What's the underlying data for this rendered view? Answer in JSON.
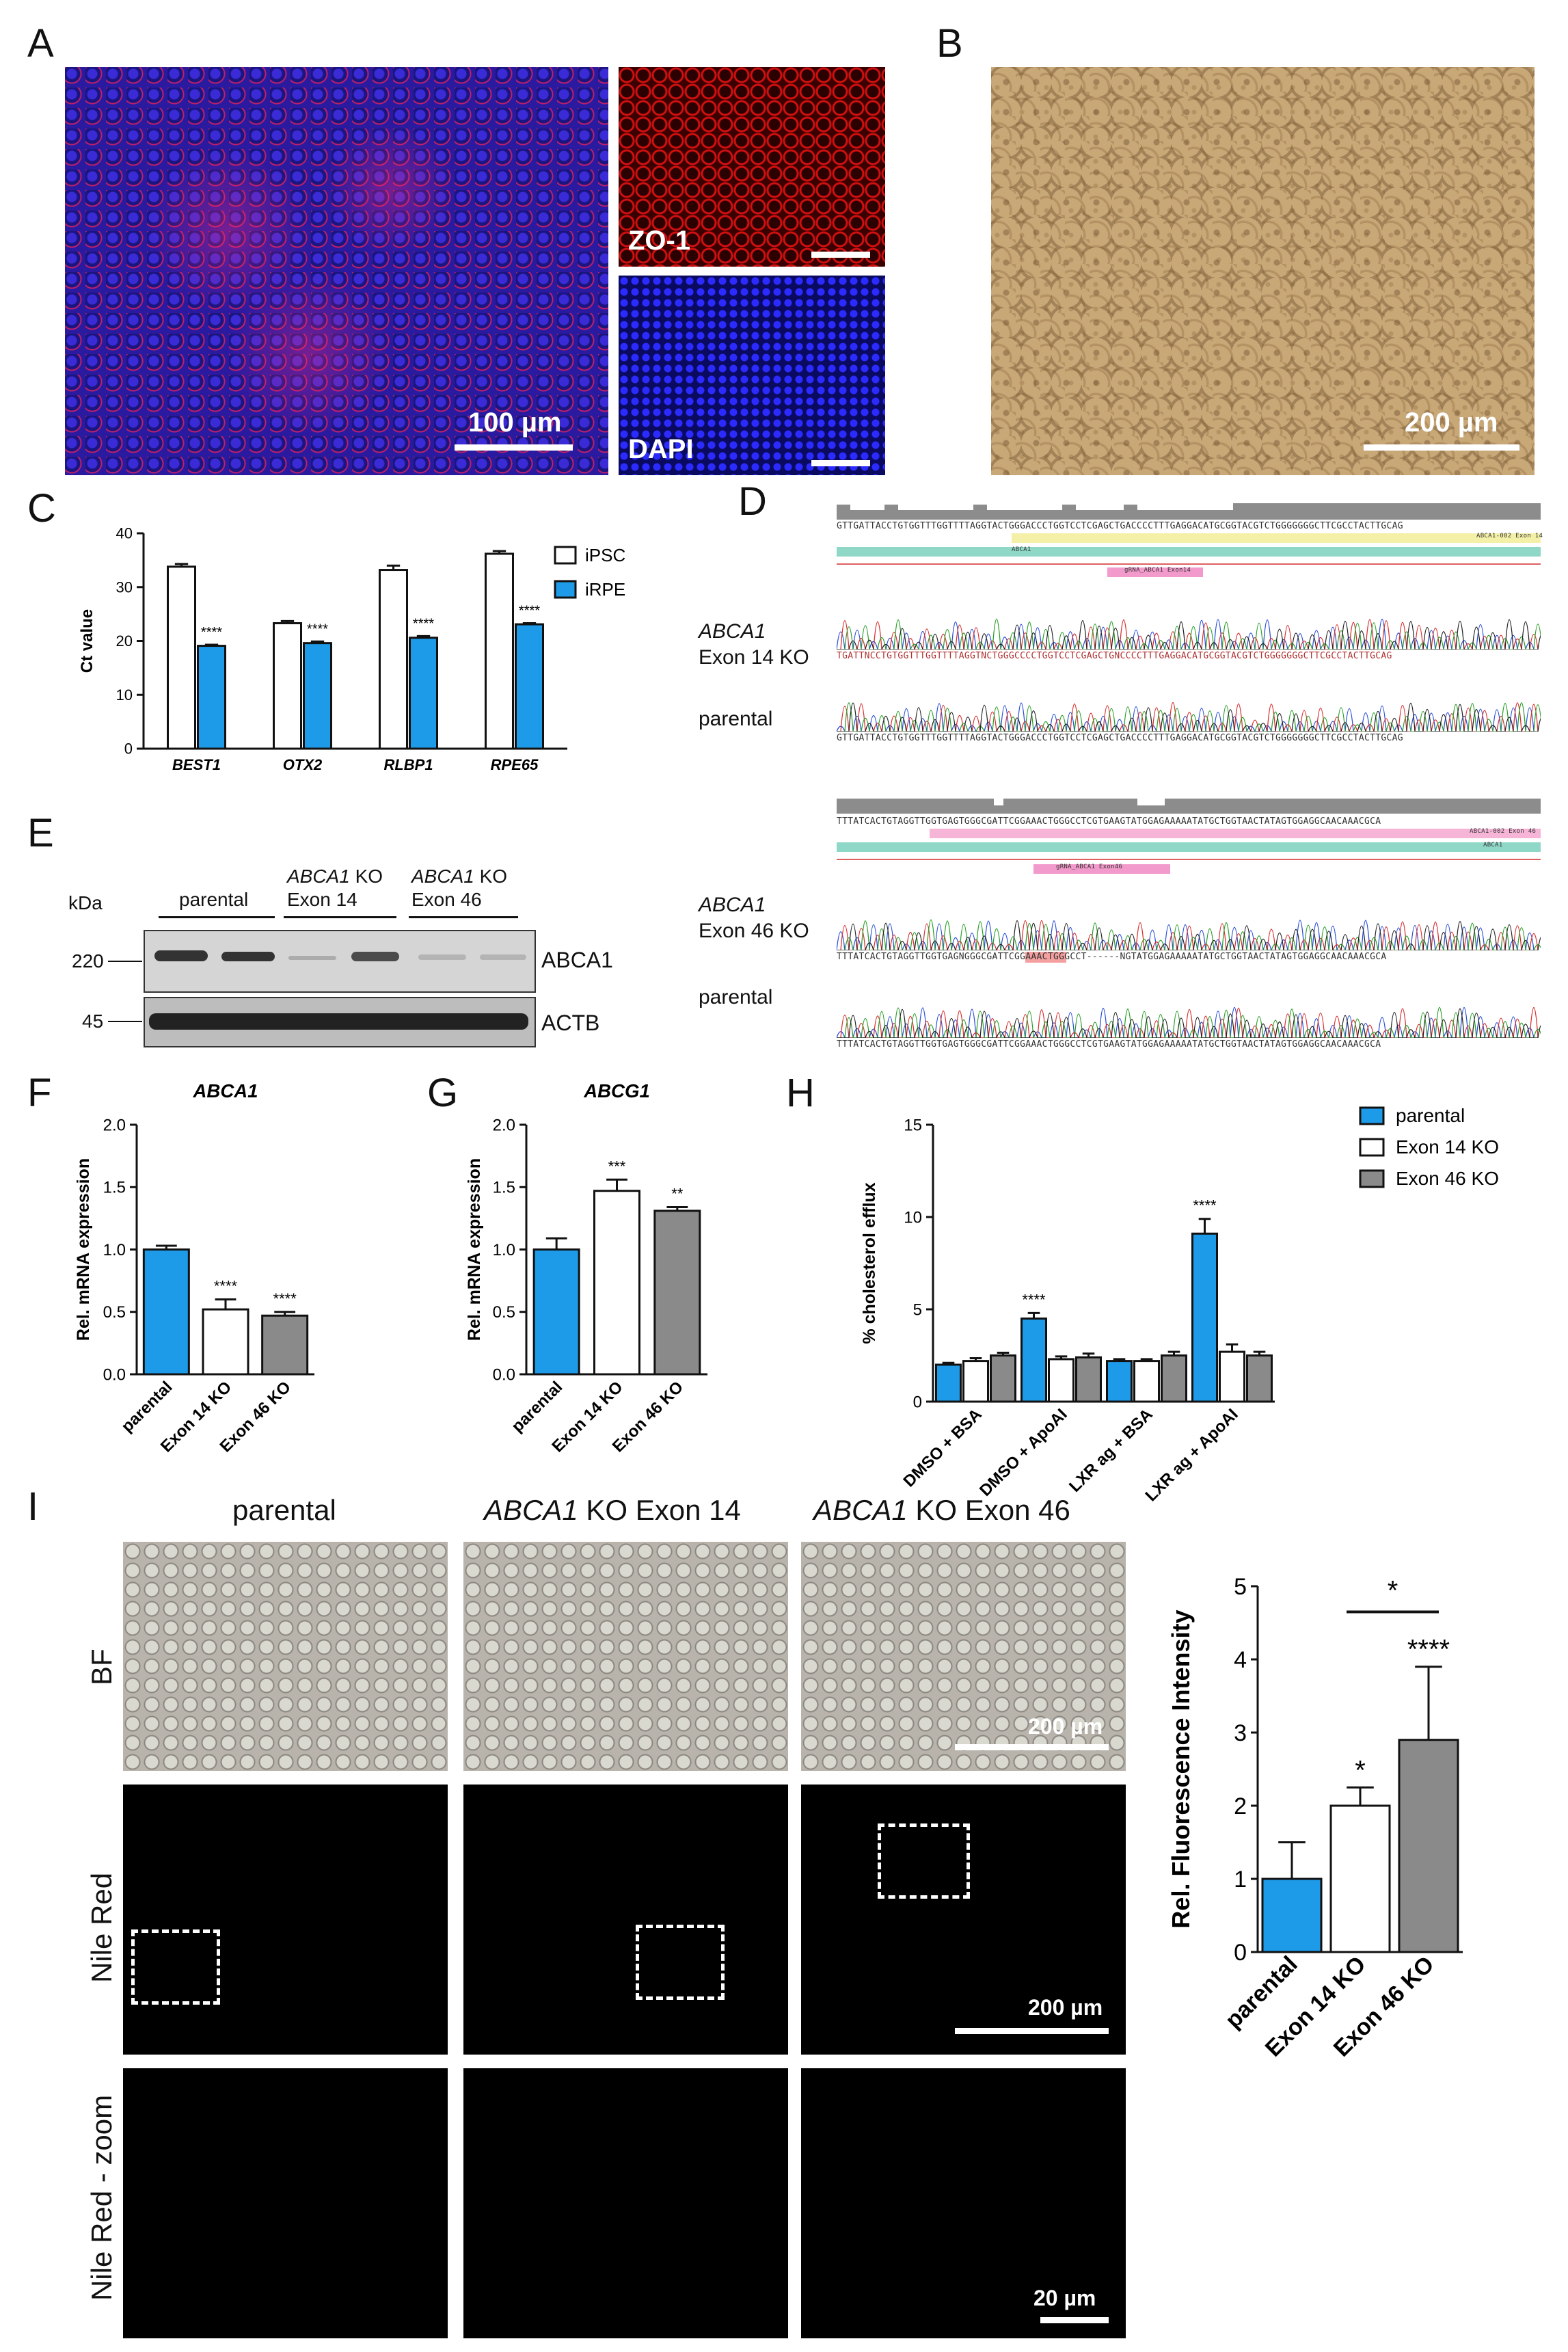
{
  "panels": {
    "A": {
      "letter": "A",
      "scale": "100 µm",
      "label_zo1": "ZO-1",
      "label_dapi": "DAPI"
    },
    "B": {
      "letter": "B",
      "scale": "200 µm"
    },
    "C": {
      "letter": "C"
    },
    "D": {
      "letter": "D",
      "top": {
        "ref_seq": "GTTGATTACCTGTGGTTTGGTTTTAGGTACTGGGACCCTGGTCCTCGAGCTGACCCCTTTGAGGACATGCGGTACGTCTGGGGGGGCTTCGCCTACTTGCAG",
        "gene_bar": "ABCA1",
        "exon_bar": "ABCA1-002 Exon 14",
        "grna": "gRNA_ABCA1 Exon14",
        "ko_label_gene": "ABCA1",
        "ko_label_rest": "Exon 14 KO",
        "ko_seq": "TGATTNCCTGTGGTTTGGTTTTAGGTNCTGGGCCCCTGGTCCTCGAGCTGNCCCCTTTGAGGACATGCGGTACGTCTGGGGGGGCTTCGCCTACTTGCAG",
        "parental_label": "parental",
        "parental_seq": "GTTGATTACCTGTGGTTTGGTTTTAGGTACTGGGACCCTGGTCCTCGAGCTGACCCCTTTGAGGACATGCGGTACGTCTGGGGGGGCTTCGCCTACTTGCAG"
      },
      "bottom": {
        "ref_seq": "TTTATCACTGTAGGTTGGTGAGTGGGCGATTCGGAAACTGGGCCTCGTGAAGTATGGAGAAAAATATGCTGGTAACTATAGTGGAGGCAACAAACGCA",
        "exon_bar": "ABCA1-002 Exon 46",
        "gene_bar": "ABCA1",
        "grna": "gRNA_ABCA1 Exon46",
        "ko_label_gene": "ABCA1",
        "ko_label_rest": "Exon 46 KO",
        "ko_seq": "TTTATCACTGTAGGTTGGTGAGNGGGCGATTCGGAAACTGGGCCT------NGTATGGAGAAAAATATGCTGGTAACTATAGTGGAGGCAACAAACGCA",
        "parental_label": "parental",
        "parental_seq": "TTTATCACTGTAGGTTGGTGAGTGGGCGATTCGGAAACTGGGCCTCGTGAAGTATGGAGAAAAATATGCTGGTAACTATAGTGGAGGCAACAAACGCA"
      }
    },
    "E": {
      "letter": "E",
      "kda": "kDa",
      "groups": [
        {
          "gene": "",
          "rest": "parental"
        },
        {
          "gene": "ABCA1",
          "rest": " KO",
          "line2": "Exon 14"
        },
        {
          "gene": "ABCA1",
          "rest": " KO",
          "line2": "Exon 46"
        }
      ],
      "rows": [
        {
          "marker": "220",
          "label": "ABCA1"
        },
        {
          "marker": "45",
          "label": "ACTB"
        }
      ]
    },
    "F": {
      "letter": "F"
    },
    "G": {
      "letter": "G"
    },
    "H": {
      "letter": "H"
    },
    "I": {
      "letter": "I",
      "columns": [
        {
          "gene": "",
          "rest": "parental"
        },
        {
          "gene": "ABCA1",
          "rest": " KO Exon 14"
        },
        {
          "gene": "ABCA1",
          "rest": " KO Exon 46"
        }
      ],
      "rows": [
        "BF",
        "Nile Red",
        "Nile Red - zoom"
      ],
      "scale_bf": "200 µm",
      "scale_nile": "200 µm",
      "scale_zoom": "20 µm"
    }
  },
  "chart_data": [
    {
      "id": "C",
      "type": "bar",
      "ylabel": "Ct value",
      "ylim": [
        0,
        40
      ],
      "yticks": [
        0,
        10,
        20,
        30,
        40
      ],
      "categories": [
        "BEST1",
        "OTX2",
        "RLBP1",
        "RPE65"
      ],
      "categories_italic": true,
      "series": [
        {
          "name": "iPSC",
          "color": "#ffffff",
          "values": [
            33.8,
            23.3,
            33.2,
            36.2
          ],
          "err": [
            0.5,
            0.4,
            0.8,
            0.5
          ]
        },
        {
          "name": "iRPE",
          "color": "#1e9be8",
          "values": [
            19.1,
            19.6,
            20.6,
            23.1
          ],
          "err": [
            0.2,
            0.3,
            0.3,
            0.2
          ]
        }
      ],
      "annotations": [
        {
          "category": 0,
          "series": 1,
          "text": "****"
        },
        {
          "category": 1,
          "series": 1,
          "text": "****"
        },
        {
          "category": 2,
          "series": 1,
          "text": "****"
        },
        {
          "category": 3,
          "series": 1,
          "text": "****"
        }
      ],
      "legend": "right"
    },
    {
      "id": "F",
      "type": "bar",
      "title": "ABCA1",
      "ylabel": "Rel. mRNA expression",
      "ylim": [
        0,
        2.0
      ],
      "yticks": [
        0.0,
        0.5,
        1.0,
        1.5,
        2.0
      ],
      "categories": [
        "parental",
        "Exon 14 KO",
        "Exon 46 KO"
      ],
      "values": [
        1.0,
        0.52,
        0.47
      ],
      "err": [
        0.03,
        0.08,
        0.03
      ],
      "colors": [
        "#1e9be8",
        "#ffffff",
        "#8a8a8a"
      ],
      "annotations": [
        "",
        "****",
        "****"
      ]
    },
    {
      "id": "G",
      "type": "bar",
      "title": "ABCG1",
      "ylabel": "Rel. mRNA expression",
      "ylim": [
        0,
        2.0
      ],
      "yticks": [
        0.0,
        0.5,
        1.0,
        1.5,
        2.0
      ],
      "categories": [
        "parental",
        "Exon 14 KO",
        "Exon 46 KO"
      ],
      "values": [
        1.0,
        1.47,
        1.31
      ],
      "err": [
        0.09,
        0.09,
        0.03
      ],
      "colors": [
        "#1e9be8",
        "#ffffff",
        "#8a8a8a"
      ],
      "annotations": [
        "",
        "***",
        "**"
      ]
    },
    {
      "id": "H",
      "type": "bar",
      "ylabel": "% cholesterol efflux",
      "ylim": [
        0,
        15
      ],
      "yticks": [
        0,
        5,
        10,
        15
      ],
      "categories": [
        "DMSO + BSA",
        "DMSO + ApoAI",
        "LXR ag + BSA",
        "LXR ag + ApoAI"
      ],
      "series": [
        {
          "name": "parental",
          "color": "#1e9be8",
          "values": [
            2.0,
            4.5,
            2.2,
            9.1
          ],
          "err": [
            0.1,
            0.3,
            0.1,
            0.8
          ]
        },
        {
          "name": "Exon 14 KO",
          "color": "#ffffff",
          "values": [
            2.2,
            2.3,
            2.2,
            2.7
          ],
          "err": [
            0.15,
            0.15,
            0.1,
            0.4
          ]
        },
        {
          "name": "Exon 46 KO",
          "color": "#8a8a8a",
          "values": [
            2.5,
            2.4,
            2.5,
            2.5
          ],
          "err": [
            0.15,
            0.2,
            0.2,
            0.2
          ]
        }
      ],
      "annotations": [
        {
          "category": 1,
          "text": "****"
        },
        {
          "category": 3,
          "text": "****"
        }
      ],
      "legend": "top-right"
    },
    {
      "id": "I",
      "type": "bar",
      "ylabel": "Rel. Fluorescence Intensity",
      "ylim": [
        0,
        5
      ],
      "yticks": [
        0,
        1,
        2,
        3,
        4,
        5
      ],
      "categories": [
        "parental",
        "Exon 14 KO",
        "Exon 46 KO"
      ],
      "values": [
        1.0,
        2.0,
        2.9
      ],
      "err": [
        0.5,
        0.25,
        1.0
      ],
      "colors": [
        "#1e9be8",
        "#ffffff",
        "#8a8a8a"
      ],
      "annotations": [
        "",
        "*",
        "****"
      ],
      "bracket": {
        "from": 1,
        "to": 2,
        "text": "*"
      }
    }
  ]
}
